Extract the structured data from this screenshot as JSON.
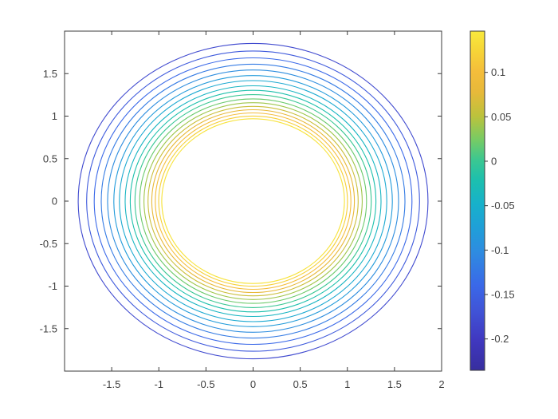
{
  "colors": {
    "background": "#ffffff",
    "axis_line": "#3b3b3b",
    "tick_label": "#3f3f3f"
  },
  "axes": {
    "xlim": [
      -2,
      2
    ],
    "ylim": [
      -2,
      2
    ],
    "x_ticks": [
      {
        "value": -1.5,
        "label": "-1.5"
      },
      {
        "value": -1,
        "label": "-1"
      },
      {
        "value": -0.5,
        "label": "-0.5"
      },
      {
        "value": 0,
        "label": "0"
      },
      {
        "value": 0.5,
        "label": "0.5"
      },
      {
        "value": 1,
        "label": "1"
      },
      {
        "value": 1.5,
        "label": "1.5"
      },
      {
        "value": 2,
        "label": "2"
      }
    ],
    "y_ticks": [
      {
        "value": -1.5,
        "label": "-1.5"
      },
      {
        "value": -1,
        "label": "-1"
      },
      {
        "value": -0.5,
        "label": "-0.5"
      },
      {
        "value": 0,
        "label": "0"
      },
      {
        "value": 0.5,
        "label": "0.5"
      },
      {
        "value": 1,
        "label": "1"
      },
      {
        "value": 1.5,
        "label": "1.5"
      }
    ]
  },
  "colorbar": {
    "ticks": [
      {
        "value": 0.1,
        "label": "0.1"
      },
      {
        "value": 0.05,
        "label": "0.05"
      },
      {
        "value": 0,
        "label": "0"
      },
      {
        "value": -0.05,
        "label": "-0.05"
      },
      {
        "value": -0.1,
        "label": "-0.1"
      },
      {
        "value": -0.15,
        "label": "-0.15"
      },
      {
        "value": -0.2,
        "label": "-0.2"
      }
    ]
  },
  "chart_data": {
    "type": "contour",
    "title": "",
    "xlabel": "",
    "ylabel": "",
    "xlim": [
      -2,
      2
    ],
    "ylim": [
      -2,
      2
    ],
    "clim": [
      -0.2353,
      0.1464
    ],
    "colormap": "parula",
    "center": [
      0,
      0
    ],
    "n_contours": 17,
    "contours": [
      {
        "level": 0.14,
        "radius": 0.969
      },
      {
        "level": 0.12,
        "radius": 1.001
      },
      {
        "level": 0.1,
        "radius": 1.038
      },
      {
        "level": 0.08,
        "radius": 1.075
      },
      {
        "level": 0.06,
        "radius": 1.115
      },
      {
        "level": 0.04,
        "radius": 1.158
      },
      {
        "level": 0.02,
        "radius": 1.203
      },
      {
        "level": 0.0,
        "radius": 1.253
      },
      {
        "level": -0.02,
        "radius": 1.303
      },
      {
        "level": -0.04,
        "radius": 1.357
      },
      {
        "level": -0.06,
        "radius": 1.418
      },
      {
        "level": -0.08,
        "radius": 1.477
      },
      {
        "level": -0.1,
        "radius": 1.543
      },
      {
        "level": -0.12,
        "radius": 1.611
      },
      {
        "level": -0.14,
        "radius": 1.685
      },
      {
        "level": -0.16,
        "radius": 1.766
      },
      {
        "level": -0.18,
        "radius": 1.855
      }
    ],
    "colormap_stops": [
      {
        "t": 0.0,
        "color": "#372e9e"
      },
      {
        "t": 0.09,
        "color": "#4038c0"
      },
      {
        "t": 0.18,
        "color": "#4055d8"
      },
      {
        "t": 0.25,
        "color": "#3a68e8"
      },
      {
        "t": 0.35,
        "color": "#2e8ce0"
      },
      {
        "t": 0.42,
        "color": "#1f9fd8"
      },
      {
        "t": 0.49,
        "color": "#17b1cb"
      },
      {
        "t": 0.56,
        "color": "#1cbfae"
      },
      {
        "t": 0.62,
        "color": "#3bc791"
      },
      {
        "t": 0.68,
        "color": "#77cb64"
      },
      {
        "t": 0.75,
        "color": "#bcc23c"
      },
      {
        "t": 0.82,
        "color": "#e7b93a"
      },
      {
        "t": 0.88,
        "color": "#f4bd3b"
      },
      {
        "t": 0.94,
        "color": "#f6d437"
      },
      {
        "t": 1.0,
        "color": "#f8e93c"
      }
    ]
  }
}
